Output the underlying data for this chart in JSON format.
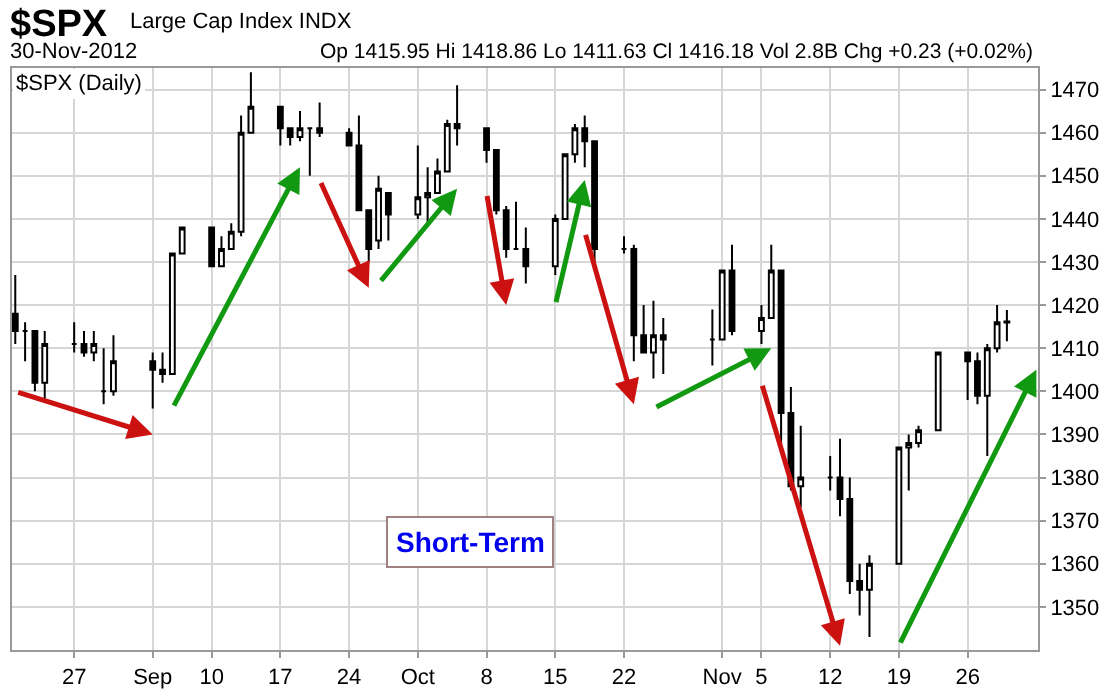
{
  "chart_data": {
    "type": "candlestick",
    "title": "$SPX",
    "subtitle": "Large Cap Index INDX",
    "annotations": [
      "30-Nov-2012",
      "Op 1415.95 Hi 1418.86 Lo 1411.63 Cl 1416.18 Vol 2.8B Chg +0.23 (+0.02%)",
      "Short-Term"
    ],
    "x": [
      "2012-08-21",
      "2012-08-22",
      "2012-08-23",
      "2012-08-24",
      "2012-08-27",
      "2012-08-28",
      "2012-08-29",
      "2012-08-30",
      "2012-08-31",
      "2012-09-04",
      "2012-09-05",
      "2012-09-06",
      "2012-09-07",
      "2012-09-10",
      "2012-09-11",
      "2012-09-12",
      "2012-09-13",
      "2012-09-14",
      "2012-09-17",
      "2012-09-18",
      "2012-09-19",
      "2012-09-20",
      "2012-09-21",
      "2012-09-24",
      "2012-09-25",
      "2012-09-26",
      "2012-09-27",
      "2012-09-28",
      "2012-10-01",
      "2012-10-02",
      "2012-10-03",
      "2012-10-04",
      "2012-10-05",
      "2012-10-08",
      "2012-10-09",
      "2012-10-10",
      "2012-10-11",
      "2012-10-12",
      "2012-10-15",
      "2012-10-16",
      "2012-10-17",
      "2012-10-18",
      "2012-10-19",
      "2012-10-22",
      "2012-10-23",
      "2012-10-24",
      "2012-10-25",
      "2012-10-26",
      "2012-10-31",
      "2012-11-01",
      "2012-11-02",
      "2012-11-05",
      "2012-11-06",
      "2012-11-07",
      "2012-11-08",
      "2012-11-09",
      "2012-11-12",
      "2012-11-13",
      "2012-11-14",
      "2012-11-15",
      "2012-11-16",
      "2012-11-19",
      "2012-11-20",
      "2012-11-21",
      "2012-11-23",
      "2012-11-26",
      "2012-11-27",
      "2012-11-28",
      "2012-11-29",
      "2012-11-30"
    ],
    "series": [
      {
        "name": "$SPX (Daily)",
        "color": "#000000",
        "ohlc": [
          [
            1418,
            1427,
            1411,
            1414
          ],
          [
            1414,
            1416,
            1407,
            1414
          ],
          [
            1414,
            1414,
            1400,
            1402
          ],
          [
            1402,
            1414,
            1398,
            1411
          ],
          [
            1411,
            1416,
            1409,
            1411
          ],
          [
            1411,
            1414,
            1408,
            1409
          ],
          [
            1409,
            1414,
            1407,
            1411
          ],
          [
            1400,
            1410,
            1397,
            1400
          ],
          [
            1400,
            1413,
            1399,
            1407
          ],
          [
            1407,
            1409,
            1396,
            1405
          ],
          [
            1405,
            1409,
            1402,
            1404
          ],
          [
            1404,
            1432,
            1404,
            1432
          ],
          [
            1432,
            1438,
            1432,
            1438
          ],
          [
            1438,
            1438,
            1429,
            1429
          ],
          [
            1429,
            1436,
            1429,
            1433
          ],
          [
            1433,
            1439,
            1433,
            1437
          ],
          [
            1437,
            1464,
            1436,
            1460
          ],
          [
            1460,
            1474,
            1460,
            1466
          ],
          [
            1466,
            1466,
            1457,
            1461
          ],
          [
            1461,
            1461,
            1457,
            1459
          ],
          [
            1459,
            1465,
            1458,
            1461
          ],
          [
            1461,
            1461,
            1450,
            1461
          ],
          [
            1461,
            1467,
            1459,
            1460
          ],
          [
            1460,
            1461,
            1457,
            1457
          ],
          [
            1457,
            1464,
            1442,
            1442
          ],
          [
            1442,
            1442,
            1430,
            1433
          ],
          [
            1435,
            1450,
            1433,
            1447
          ],
          [
            1446,
            1446,
            1435,
            1441
          ],
          [
            1441,
            1457,
            1440,
            1445
          ],
          [
            1445,
            1452,
            1439,
            1446
          ],
          [
            1446,
            1454,
            1446,
            1451
          ],
          [
            1451,
            1463,
            1451,
            1462
          ],
          [
            1462,
            1471,
            1457,
            1461
          ],
          [
            1461,
            1461,
            1453,
            1456
          ],
          [
            1456,
            1456,
            1441,
            1442
          ],
          [
            1442,
            1443,
            1431,
            1433
          ],
          [
            1433,
            1444,
            1433,
            1433
          ],
          [
            1433,
            1438,
            1425,
            1429
          ],
          [
            1429,
            1441,
            1427,
            1440
          ],
          [
            1440,
            1455,
            1440,
            1455
          ],
          [
            1455,
            1462,
            1453,
            1461
          ],
          [
            1461,
            1464,
            1452,
            1458
          ],
          [
            1458,
            1458,
            1430,
            1433
          ],
          [
            1433,
            1436,
            1432,
            1433
          ],
          [
            1433,
            1434,
            1407,
            1413
          ],
          [
            1413,
            1420,
            1409,
            1409
          ],
          [
            1409,
            1421,
            1403,
            1413
          ],
          [
            1413,
            1417,
            1404,
            1412
          ],
          [
            1412,
            1419,
            1406,
            1412
          ],
          [
            1412,
            1428,
            1412,
            1428
          ],
          [
            1428,
            1434,
            1413,
            1414
          ],
          [
            1414,
            1420,
            1411,
            1417
          ],
          [
            1417,
            1434,
            1417,
            1428
          ],
          [
            1428,
            1428,
            1388,
            1395
          ],
          [
            1395,
            1401,
            1377,
            1378
          ],
          [
            1378,
            1392,
            1373,
            1380
          ],
          [
            1380,
            1385,
            1377,
            1380
          ],
          [
            1380,
            1389,
            1371,
            1375
          ],
          [
            1375,
            1380,
            1353,
            1356
          ],
          [
            1356,
            1360,
            1348,
            1354
          ],
          [
            1354,
            1362,
            1343,
            1360
          ],
          [
            1360,
            1387,
            1360,
            1387
          ],
          [
            1387,
            1390,
            1377,
            1388
          ],
          [
            1388,
            1392,
            1387,
            1391
          ],
          [
            1391,
            1409,
            1391,
            1409
          ],
          [
            1409,
            1409,
            1398,
            1407
          ],
          [
            1407,
            1409,
            1397,
            1399
          ],
          [
            1399,
            1411,
            1385,
            1410
          ],
          [
            1410,
            1420,
            1409,
            1416
          ],
          [
            1415.95,
            1418.86,
            1411.63,
            1416.18
          ]
        ]
      }
    ],
    "xlim": [
      "2012-08-20T16:00",
      "2012-12-03T04:00"
    ],
    "xticks": [
      {
        "value": "2012-08-27",
        "label": "27"
      },
      {
        "value": "2012-09-04",
        "label": "Sep"
      },
      {
        "value": "2012-09-10",
        "label": "10"
      },
      {
        "value": "2012-09-17",
        "label": "17"
      },
      {
        "value": "2012-09-24",
        "label": "24"
      },
      {
        "value": "2012-10-01",
        "label": "Oct"
      },
      {
        "value": "2012-10-08",
        "label": "8"
      },
      {
        "value": "2012-10-15",
        "label": "15"
      },
      {
        "value": "2012-10-22",
        "label": "22"
      },
      {
        "value": "2012-11-01",
        "label": "Nov"
      },
      {
        "value": "2012-11-05",
        "label": "5"
      },
      {
        "value": "2012-11-12",
        "label": "12"
      },
      {
        "value": "2012-11-19",
        "label": "19"
      },
      {
        "value": "2012-11-26",
        "label": "26"
      }
    ],
    "ylim": [
      1340,
      1475
    ],
    "yticks": [
      1350,
      1360,
      1370,
      1380,
      1390,
      1400,
      1410,
      1420,
      1430,
      1440,
      1450,
      1460,
      1470
    ],
    "grid": true,
    "legend": false
  }
}
